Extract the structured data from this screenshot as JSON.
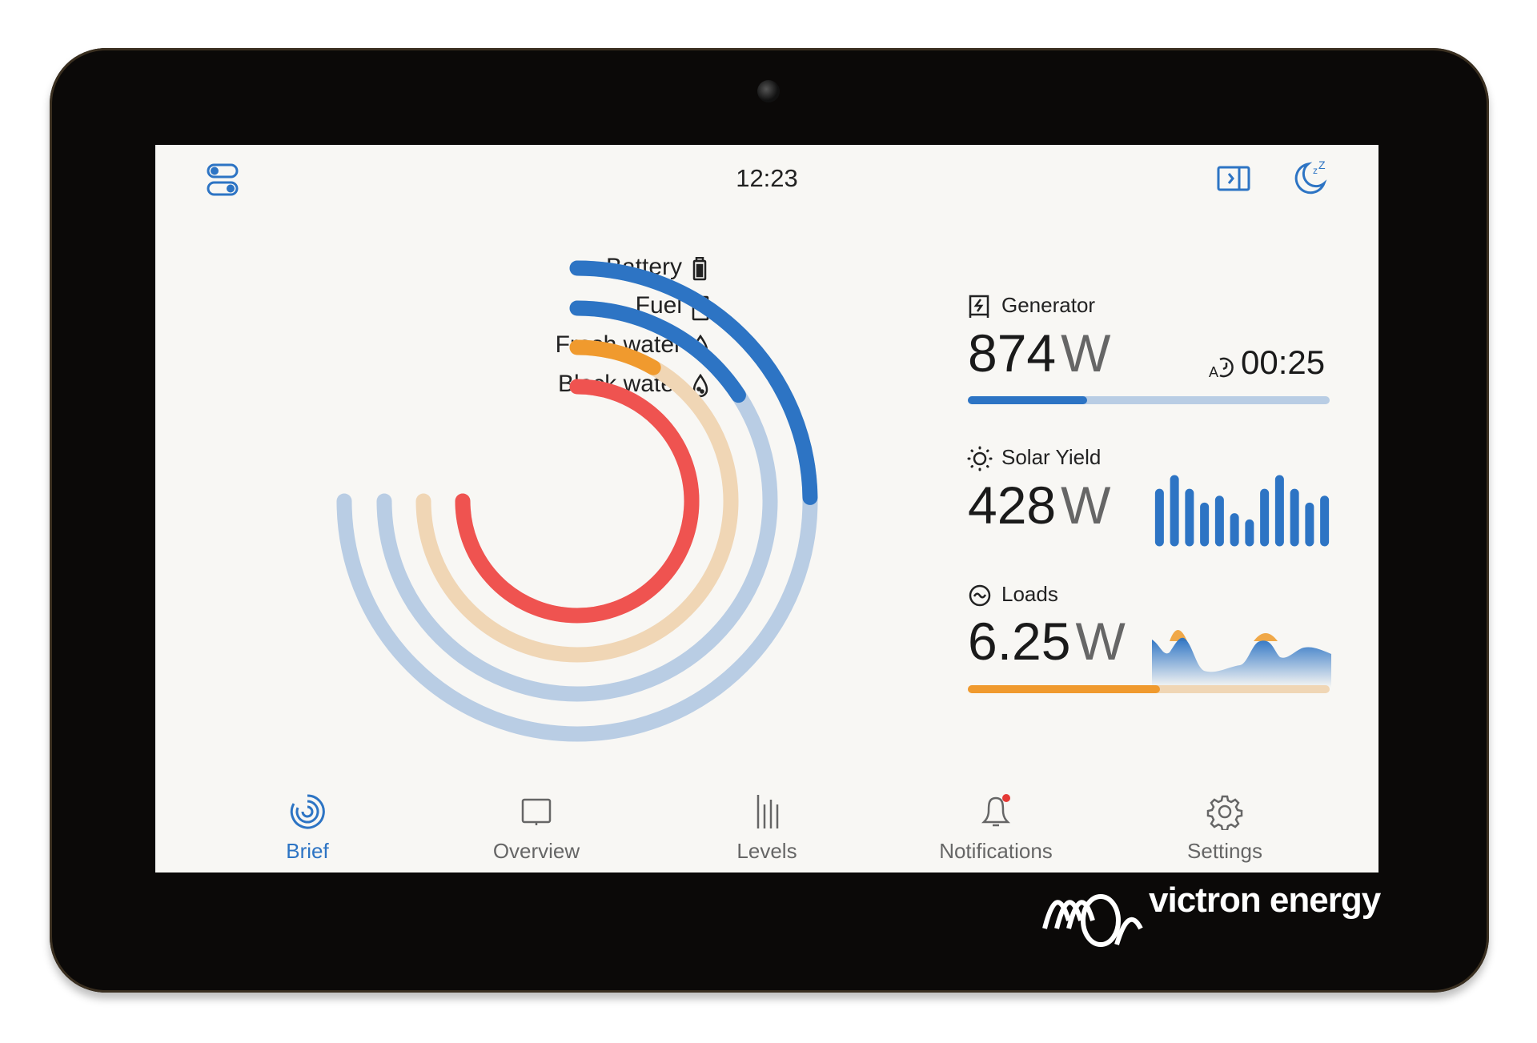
{
  "header": {
    "time": "12:23",
    "left_icon": "toggle-switches-icon",
    "right_icons": [
      "sidebar-panel-icon",
      "sleep-moon-icon"
    ]
  },
  "levels": {
    "items": [
      {
        "label": "Battery",
        "icon": "battery-icon",
        "percent": 33,
        "color": "#2d74c4",
        "track": "#b9cde4"
      },
      {
        "label": "Fuel",
        "icon": "fuel-pump-icon",
        "percent": 21,
        "color": "#2d74c4",
        "track": "#b9cde4"
      },
      {
        "label": "Fresh water",
        "icon": "water-drop-icon",
        "percent": 11,
        "color": "#f09a2e",
        "track": "#f0d6b5"
      },
      {
        "label": "Black water",
        "icon": "black-water-drop-icon",
        "percent": 100,
        "color": "#ef5350",
        "track": "#f5c2c0"
      }
    ]
  },
  "generator": {
    "title": "Generator",
    "icon": "generator-icon",
    "value": "874",
    "unit": "W",
    "timer": "00:25",
    "timer_icon": "auto-start-timer-icon",
    "progress": 33,
    "color": "#2d74c4",
    "track": "#b9cde4"
  },
  "solar": {
    "title": "Solar Yield",
    "icon": "sun-icon",
    "value": "428",
    "unit": "W",
    "bars": [
      0.78,
      1,
      0.78,
      0.56,
      0.67,
      0.39,
      0.29,
      0.78,
      1,
      0.78,
      0.56,
      0.67
    ],
    "color": "#2d74c4"
  },
  "loads": {
    "title": "Loads",
    "icon": "ac-wave-icon",
    "value": "6.25",
    "unit": "W",
    "progress": 53,
    "color": "#f09a2e",
    "track": "#f0d6b5"
  },
  "nav": [
    {
      "label": "Brief",
      "icon": "brief-icon",
      "active": true
    },
    {
      "label": "Overview",
      "icon": "overview-icon"
    },
    {
      "label": "Levels",
      "icon": "levels-icon"
    },
    {
      "label": "Notifications",
      "icon": "bell-icon",
      "badge": true
    },
    {
      "label": "Settings",
      "icon": "gear-icon"
    }
  ],
  "brand": {
    "name": "victron energy"
  }
}
